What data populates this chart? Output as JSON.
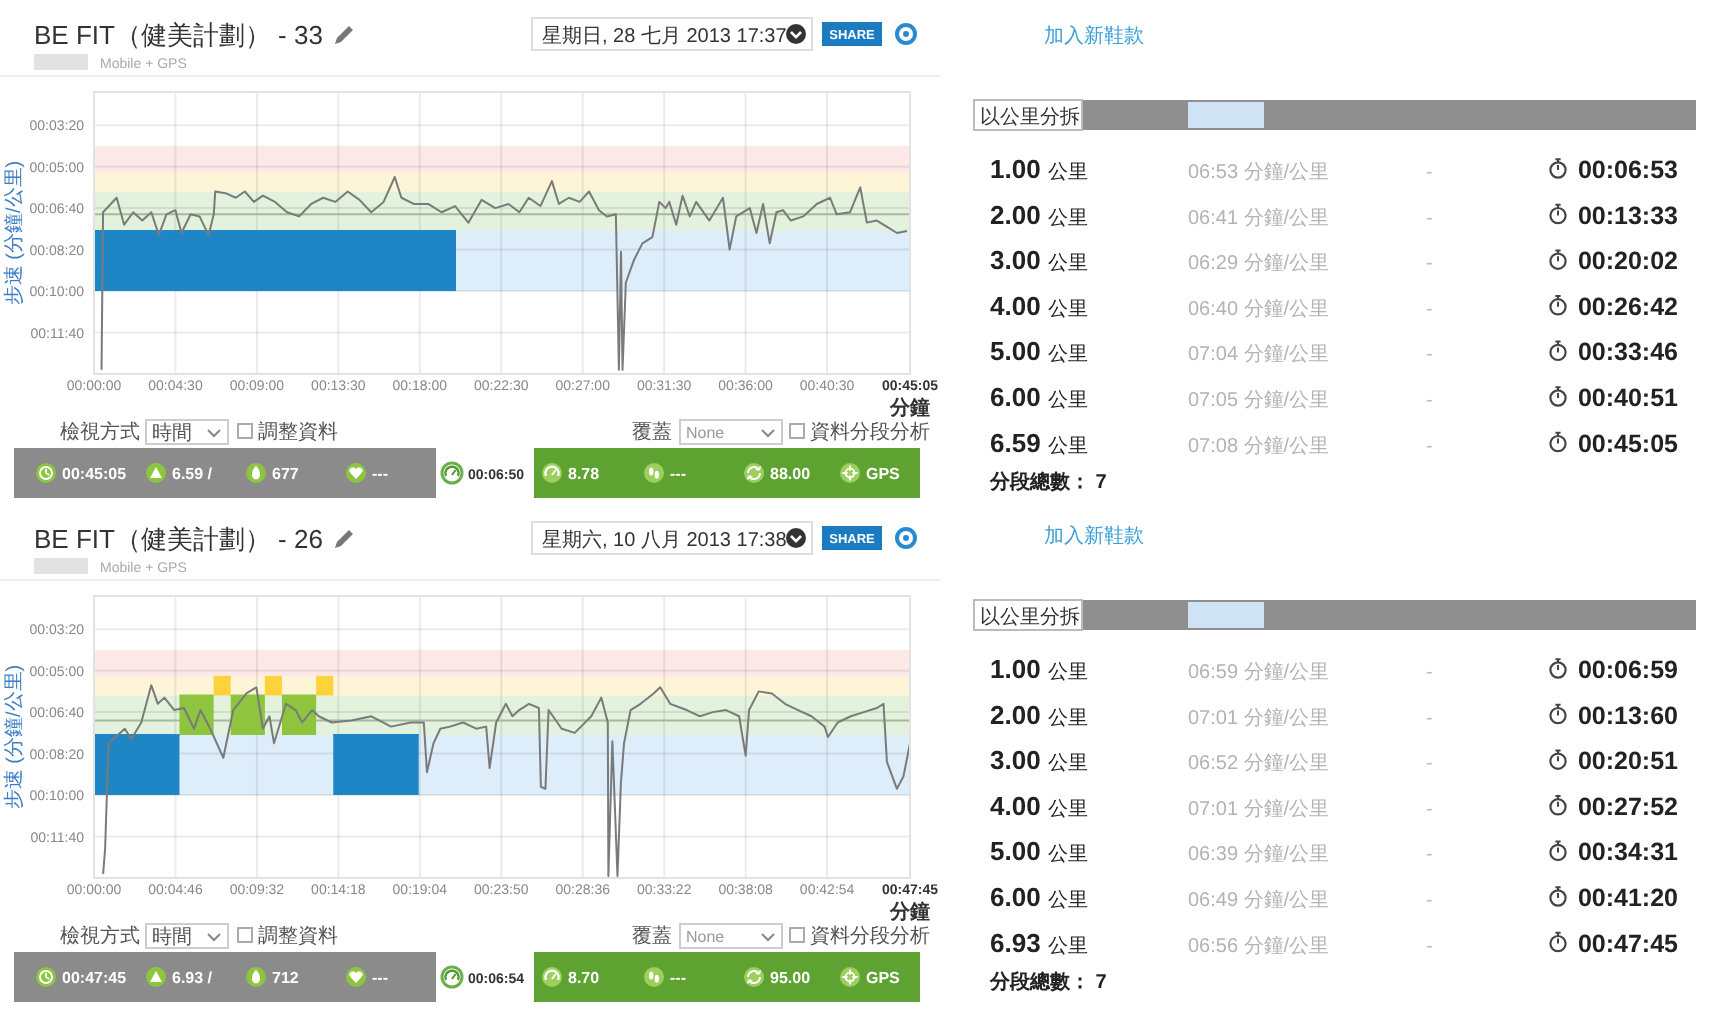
{
  "chart_data": [
    {
      "type": "line",
      "title": "BE FIT（健美計劃） - 33",
      "subtitle": "Mobile + GPS",
      "xlabel": "分鐘",
      "ylabel": "步速 (分鐘/公里)",
      "xlim": [
        0,
        2705
      ],
      "xticks": [
        {
          "value": 0,
          "label": "00:00:00"
        },
        {
          "value": 270,
          "label": "00:04:30"
        },
        {
          "value": 540,
          "label": "00:09:00"
        },
        {
          "value": 810,
          "label": "00:13:30"
        },
        {
          "value": 1080,
          "label": "00:18:00"
        },
        {
          "value": 1350,
          "label": "00:22:30"
        },
        {
          "value": 1620,
          "label": "00:27:00"
        },
        {
          "value": 1890,
          "label": "00:31:30"
        },
        {
          "value": 2160,
          "label": "00:36:00"
        },
        {
          "value": 2430,
          "label": "00:40:30"
        },
        {
          "value": 2705,
          "label": "00:45:05"
        }
      ],
      "ylim": [
        800,
        120
      ],
      "yticks": [
        {
          "value": 200,
          "label": "00:03:20"
        },
        {
          "value": 300,
          "label": "00:05:00"
        },
        {
          "value": 400,
          "label": "00:06:40"
        },
        {
          "value": 500,
          "label": "00:08:20"
        },
        {
          "value": 600,
          "label": "00:10:00"
        },
        {
          "value": 700,
          "label": "00:11:40"
        }
      ],
      "grid": true,
      "bands": [
        {
          "axis": "y",
          "from": 250,
          "to": 315,
          "color": "#fde8e8"
        },
        {
          "axis": "y",
          "from": 315,
          "to": 360,
          "color": "#fdf5d6"
        },
        {
          "axis": "y",
          "from": 360,
          "to": 455,
          "color": "#e3f2dc"
        },
        {
          "axis": "y",
          "from": 455,
          "to": 600,
          "color": "#ddedf9"
        }
      ],
      "ref_lines": [
        {
          "axis": "y",
          "value": 415,
          "color": "#a8b89e"
        }
      ],
      "series": [
        {
          "type": "line",
          "color": "#1f86c6",
          "x": [
            0,
            1200
          ],
          "values": [
            455,
            455
          ],
          "lower": [
            600,
            600
          ],
          "upper": [
            455,
            455
          ]
        },
        {
          "type": "line",
          "color": "#7a7a7a",
          "x": [
            25,
            30,
            75,
            100,
            130,
            160,
            190,
            215,
            240,
            270,
            290,
            320,
            350,
            380,
            397,
            402,
            440,
            470,
            500,
            530,
            560,
            600,
            640,
            680,
            720,
            760,
            800,
            841,
            880,
            919,
            960,
            997,
            1019,
            1060,
            1108,
            1152,
            1197,
            1241,
            1285,
            1330,
            1374,
            1410,
            1441,
            1480,
            1518,
            1541,
            1574,
            1610,
            1641,
            1674,
            1700,
            1730,
            1740,
            1747,
            1752,
            1763,
            1790,
            1818,
            1851,
            1874,
            1895,
            1907,
            1930,
            1951,
            1975,
            1996,
            2040,
            2085,
            2107,
            2129,
            2174,
            2196,
            2218,
            2240,
            2262,
            2284,
            2310,
            2351,
            2396,
            2440,
            2462,
            2506,
            2540,
            2562,
            2595,
            2629,
            2662,
            2695
          ],
          "values": [
            790,
            410,
            375,
            440,
            410,
            430,
            410,
            465,
            415,
            405,
            460,
            415,
            420,
            465,
            415,
            360,
            365,
            375,
            360,
            385,
            370,
            385,
            410,
            420,
            390,
            375,
            385,
            360,
            380,
            410,
            385,
            325,
            375,
            390,
            390,
            410,
            395,
            435,
            380,
            400,
            390,
            410,
            375,
            395,
            335,
            390,
            375,
            385,
            360,
            405,
            420,
            415,
            790,
            505,
            790,
            580,
            525,
            485,
            470,
            385,
            400,
            385,
            440,
            370,
            420,
            385,
            430,
            375,
            500,
            420,
            400,
            460,
            390,
            485,
            410,
            405,
            430,
            420,
            390,
            375,
            415,
            410,
            350,
            435,
            430,
            445,
            460,
            455
          ]
        }
      ],
      "annotations": [
        "星期日, 28 七月 2013 17:37",
        "SHARE",
        "檢視方式",
        "時間",
        "調整資料",
        "覆蓋",
        "None",
        "資料分段分析",
        "00:45:05",
        "6.59 /",
        "677",
        "---",
        "00:06:50",
        "8.78",
        "---",
        "88.00",
        "GPS"
      ]
    },
    {
      "type": "other",
      "annotations": [
        "加入新鞋款",
        "以公里分拆",
        "1.00 公里",
        "06:53 分鐘/公里",
        "-",
        "00:06:53",
        "2.00 公里",
        "06:41 分鐘/公里",
        "-",
        "00:13:33",
        "3.00 公里",
        "06:29 分鐘/公里",
        "-",
        "00:20:02",
        "4.00 公里",
        "06:40 分鐘/公里",
        "-",
        "00:26:42",
        "5.00 公里",
        "07:04 分鐘/公里",
        "-",
        "00:33:46",
        "6.00 公里",
        "07:05 分鐘/公里",
        "-",
        "00:40:51",
        "6.59 公里",
        "07:08 分鐘/公里",
        "-",
        "00:45:05",
        "分段總數： 7"
      ]
    },
    {
      "type": "line",
      "title": "BE FIT（健美計劃） - 26",
      "subtitle": "Mobile + GPS",
      "xlabel": "分鐘",
      "ylabel": "步速 (分鐘/公里)",
      "xlim": [
        0,
        2865
      ],
      "xticks": [
        {
          "value": 0,
          "label": "00:00:00"
        },
        {
          "value": 286,
          "label": "00:04:46"
        },
        {
          "value": 572,
          "label": "00:09:32"
        },
        {
          "value": 858,
          "label": "00:14:18"
        },
        {
          "value": 1144,
          "label": "00:19:04"
        },
        {
          "value": 1430,
          "label": "00:23:50"
        },
        {
          "value": 1716,
          "label": "00:28:36"
        },
        {
          "value": 2002,
          "label": "00:33:22"
        },
        {
          "value": 2288,
          "label": "00:38:08"
        },
        {
          "value": 2574,
          "label": "00:42:54"
        },
        {
          "value": 2865,
          "label": "00:47:45"
        }
      ],
      "ylim": [
        800,
        120
      ],
      "yticks": [
        {
          "value": 200,
          "label": "00:03:20"
        },
        {
          "value": 300,
          "label": "00:05:00"
        },
        {
          "value": 400,
          "label": "00:06:40"
        },
        {
          "value": 500,
          "label": "00:08:20"
        },
        {
          "value": 600,
          "label": "00:10:00"
        },
        {
          "value": 700,
          "label": "00:11:40"
        }
      ],
      "grid": true,
      "bands": [
        {
          "axis": "y",
          "from": 250,
          "to": 315,
          "color": "#fde8e8"
        },
        {
          "axis": "y",
          "from": 315,
          "to": 360,
          "color": "#fdf5d6"
        },
        {
          "axis": "y",
          "from": 360,
          "to": 455,
          "color": "#e3f2dc"
        },
        {
          "axis": "y",
          "from": 455,
          "to": 600,
          "color": "#ddedf9"
        }
      ],
      "ref_lines": [
        {
          "axis": "y",
          "value": 420,
          "color": "#a8b89e"
        }
      ],
      "series": [
        {
          "type": "line",
          "color": "#1f86c6",
          "x": [
            0,
            300
          ],
          "values": [
            455,
            455
          ],
          "lower": [
            600,
            600
          ],
          "upper": [
            455,
            455
          ]
        },
        {
          "type": "line",
          "color": "#8fc43f",
          "x": [
            300,
            420
          ],
          "values": [
            360,
            360
          ],
          "lower": [
            455,
            455
          ],
          "upper": [
            360,
            360
          ]
        },
        {
          "type": "line",
          "color": "#fdd23a",
          "x": [
            420,
            480
          ],
          "values": [
            315,
            315
          ],
          "lower": [
            360,
            360
          ],
          "upper": [
            315,
            315
          ]
        },
        {
          "type": "line",
          "color": "#8fc43f",
          "x": [
            480,
            600
          ],
          "values": [
            360,
            360
          ],
          "lower": [
            455,
            455
          ],
          "upper": [
            360,
            360
          ]
        },
        {
          "type": "line",
          "color": "#fdd23a",
          "x": [
            600,
            660
          ],
          "values": [
            315,
            315
          ],
          "lower": [
            360,
            360
          ],
          "upper": [
            315,
            315
          ]
        },
        {
          "type": "line",
          "color": "#8fc43f",
          "x": [
            660,
            780
          ],
          "values": [
            360,
            360
          ],
          "lower": [
            455,
            455
          ],
          "upper": [
            360,
            360
          ]
        },
        {
          "type": "line",
          "color": "#fdd23a",
          "x": [
            780,
            840
          ],
          "values": [
            315,
            315
          ],
          "lower": [
            360,
            360
          ],
          "upper": [
            315,
            315
          ]
        },
        {
          "type": "line",
          "color": "#1f86c6",
          "x": [
            840,
            1140
          ],
          "values": [
            455,
            455
          ],
          "lower": [
            600,
            600
          ],
          "upper": [
            455,
            455
          ]
        },
        {
          "type": "line",
          "color": "#7a7a7a",
          "x": [
            32,
            39,
            51,
            108,
            131,
            166,
            201,
            224,
            247,
            282,
            316,
            351,
            374,
            408,
            454,
            489,
            535,
            570,
            593,
            616,
            632,
            674,
            708,
            731,
            766,
            789,
            835,
            904,
            974,
            1043,
            1112,
            1158,
            1169,
            1192,
            1216,
            1250,
            1296,
            1342,
            1377,
            1389,
            1412,
            1446,
            1469,
            1493,
            1527,
            1562,
            1569,
            1585,
            1596,
            1642,
            1688,
            1746,
            1781,
            1804,
            1806,
            1820,
            1838,
            1850,
            1861,
            1884,
            1919,
            1965,
            1988,
            2023,
            2081,
            2127,
            2173,
            2219,
            2265,
            2288,
            2300,
            2334,
            2380,
            2426,
            2472,
            2519,
            2565,
            2577,
            2611,
            2657,
            2703,
            2749,
            2772,
            2784,
            2819,
            2842,
            2865
          ],
          "values": [
            790,
            730,
            475,
            440,
            465,
            425,
            335,
            380,
            365,
            395,
            390,
            440,
            395,
            440,
            510,
            395,
            355,
            340,
            440,
            410,
            475,
            380,
            395,
            425,
            395,
            410,
            425,
            420,
            410,
            435,
            425,
            425,
            545,
            475,
            440,
            435,
            425,
            440,
            435,
            535,
            425,
            380,
            410,
            395,
            380,
            390,
            580,
            585,
            395,
            440,
            450,
            410,
            365,
            425,
            795,
            470,
            795,
            570,
            475,
            395,
            380,
            355,
            340,
            380,
            395,
            410,
            400,
            395,
            410,
            505,
            395,
            350,
            355,
            380,
            395,
            410,
            435,
            460,
            425,
            410,
            400,
            390,
            380,
            520,
            585,
            555,
            475
          ]
        }
      ],
      "annotations": [
        "星期六, 10 八月 2013 17:38",
        "SHARE",
        "檢視方式",
        "時間",
        "調整資料",
        "覆蓋",
        "None",
        "資料分段分析",
        "00:47:45",
        "6.93 /",
        "712",
        "---",
        "00:06:54",
        "8.70",
        "---",
        "95.00",
        "GPS"
      ]
    },
    {
      "type": "other",
      "annotations": [
        "加入新鞋款",
        "以公里分拆",
        "1.00 公里",
        "06:59 分鐘/公里",
        "-",
        "00:06:59",
        "2.00 公里",
        "07:01 分鐘/公里",
        "-",
        "00:13:60",
        "3.00 公里",
        "06:52 分鐘/公里",
        "-",
        "00:20:51",
        "4.00 公里",
        "07:01 分鐘/公里",
        "-",
        "00:27:52",
        "5.00 公里",
        "06:39 分鐘/公里",
        "-",
        "00:34:31",
        "6.00 公里",
        "06:49 分鐘/公里",
        "-",
        "00:41:20",
        "6.93 公里",
        "06:56 分鐘/公里",
        "-",
        "00:47:45",
        "分段總數： 7"
      ]
    }
  ]
}
